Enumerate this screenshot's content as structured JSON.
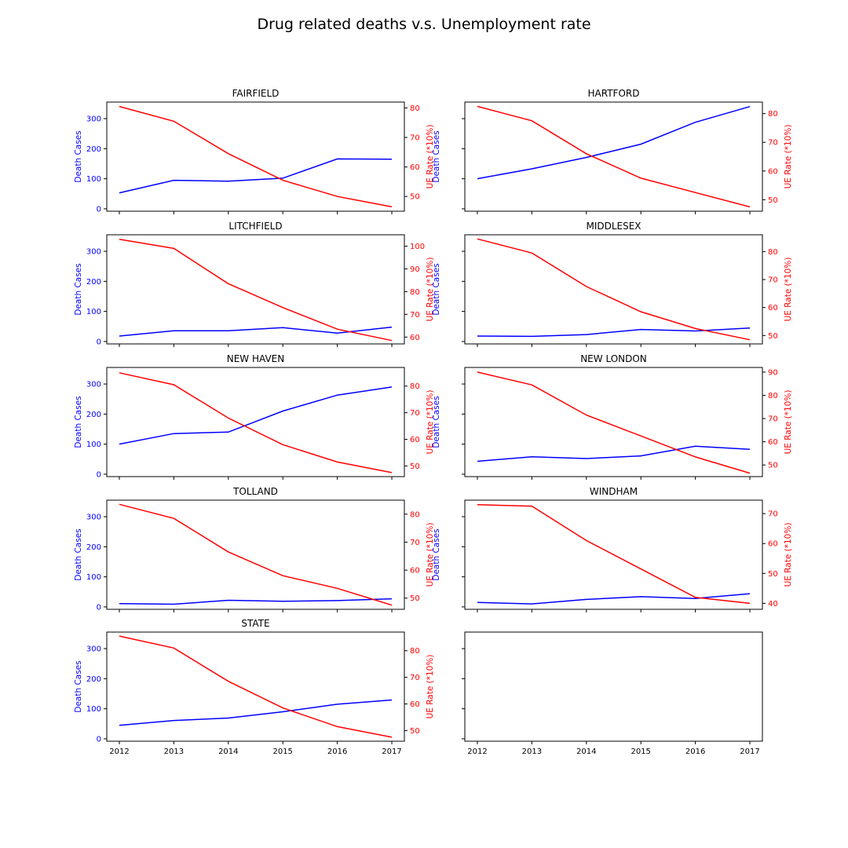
{
  "title": "Drug related deaths v.s. Unemployment rate",
  "colors": {
    "left": "#0000ff",
    "right": "#ff0000",
    "axes": "#000000"
  },
  "chart_data": {
    "type": "line",
    "x": [
      2012,
      2013,
      2014,
      2015,
      2016,
      2017
    ],
    "left_ylabel": "Death Cases",
    "right_ylabel": "UE Rate (*10%)",
    "left_ylim": [
      -8,
      355
    ],
    "left_ticks": [
      0,
      100,
      200,
      300
    ],
    "grid": false,
    "panels": [
      {
        "name": "FAIRFIELD",
        "deaths": [
          53,
          95,
          92,
          102,
          166,
          165
        ],
        "ue": [
          80.5,
          75.5,
          64.5,
          55.5,
          50.0,
          46.5
        ],
        "ue_ylim": [
          45,
          82
        ],
        "ue_ticks": [
          50,
          60,
          70,
          80
        ]
      },
      {
        "name": "HARTFORD",
        "deaths": [
          100,
          133,
          171,
          215,
          288,
          340
        ],
        "ue": [
          82.5,
          77.5,
          66.0,
          57.5,
          52.5,
          47.5
        ],
        "ue_ylim": [
          46,
          84
        ],
        "ue_ticks": [
          50,
          60,
          70,
          80
        ]
      },
      {
        "name": "LITCHFIELD",
        "deaths": [
          18,
          36,
          36,
          46,
          28,
          48
        ],
        "ue": [
          103.0,
          99.0,
          83.5,
          73.0,
          63.5,
          58.5
        ],
        "ue_ylim": [
          57,
          105
        ],
        "ue_ticks": [
          60,
          70,
          80,
          90,
          100
        ]
      },
      {
        "name": "MIDDLESEX",
        "deaths": [
          18,
          17,
          23,
          40,
          35,
          45
        ],
        "ue": [
          84.5,
          79.5,
          67.5,
          58.5,
          52.5,
          48.5
        ],
        "ue_ylim": [
          47,
          86
        ],
        "ue_ticks": [
          50,
          60,
          70,
          80
        ]
      },
      {
        "name": "NEW HAVEN",
        "deaths": [
          100,
          135,
          140,
          210,
          263,
          290
        ],
        "ue": [
          85.0,
          80.5,
          68.0,
          58.0,
          51.5,
          47.5
        ],
        "ue_ylim": [
          46,
          87
        ],
        "ue_ticks": [
          50,
          60,
          70,
          80
        ]
      },
      {
        "name": "NEW LONDON",
        "deaths": [
          43,
          58,
          52,
          61,
          93,
          83
        ],
        "ue": [
          90.0,
          84.5,
          71.5,
          62.5,
          53.5,
          46.5
        ],
        "ue_ylim": [
          45,
          92
        ],
        "ue_ticks": [
          50,
          60,
          70,
          80,
          90
        ]
      },
      {
        "name": "TOLLAND",
        "deaths": [
          11,
          9,
          22,
          19,
          21,
          27
        ],
        "ue": [
          83.5,
          78.5,
          66.5,
          58.0,
          53.5,
          47.5
        ],
        "ue_ylim": [
          46,
          85
        ],
        "ue_ticks": [
          50,
          60,
          70,
          80
        ]
      },
      {
        "name": "WINDHAM",
        "deaths": [
          15,
          10,
          25,
          34,
          28,
          44
        ],
        "ue": [
          73.0,
          72.5,
          61.0,
          51.5,
          42.0,
          40.0
        ],
        "ue_ylim": [
          38,
          74.5
        ],
        "ue_ticks": [
          40,
          50,
          60,
          70
        ]
      },
      {
        "name": "STATE",
        "deaths": [
          45,
          61,
          69,
          90,
          115,
          129
        ],
        "ue": [
          85.5,
          81.0,
          68.5,
          58.5,
          51.5,
          47.5
        ],
        "ue_ylim": [
          46,
          87
        ],
        "ue_ticks": [
          50,
          60,
          70,
          80
        ]
      },
      {
        "name": "",
        "empty": true
      }
    ]
  }
}
